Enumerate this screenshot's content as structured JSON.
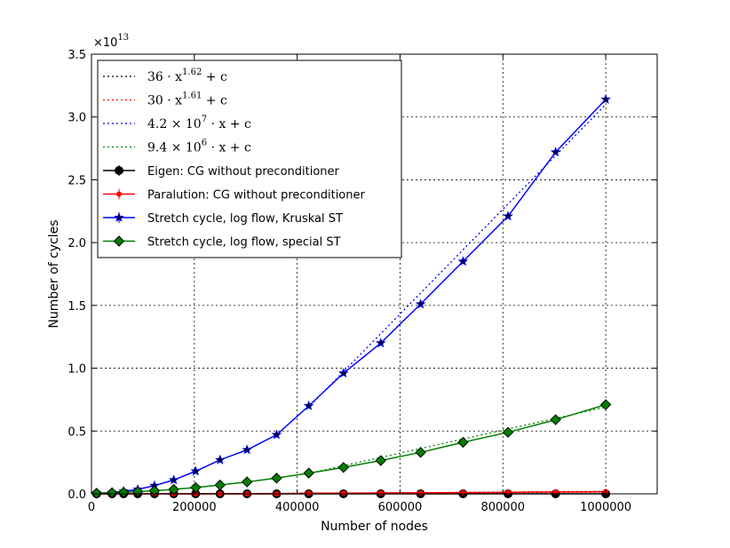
{
  "chart_data": {
    "type": "line",
    "xlabel": "Number of nodes",
    "ylabel": "Number of cycles",
    "xlim": [
      0,
      1100000
    ],
    "ylim": [
      0,
      3.5
    ],
    "y_scale_label": "×10",
    "y_scale_exponent": "13",
    "x_ticks": [
      0,
      200000,
      400000,
      600000,
      800000,
      1000000
    ],
    "x_tick_labels": [
      "0",
      "200000",
      "400000",
      "600000",
      "800000",
      "1000000"
    ],
    "y_ticks": [
      0.0,
      0.5,
      1.0,
      1.5,
      2.0,
      2.5,
      3.0,
      3.5
    ],
    "y_tick_labels": [
      "0.0",
      "0.5",
      "1.0",
      "1.5",
      "2.0",
      "2.5",
      "3.0",
      "3.5"
    ],
    "grid": true,
    "legend_position": "top-left",
    "fits": [
      {
        "label_pre": "36 · x",
        "label_sup": "1.62",
        "label_post": " + c",
        "color": "#000000",
        "type": "power",
        "a": 36,
        "b": 1.62,
        "c": 0
      },
      {
        "label_pre": "30 · x",
        "label_sup": "1.61",
        "label_post": " + c",
        "color": "#ff0000",
        "type": "power",
        "a": 30,
        "b": 1.61,
        "c": 0
      },
      {
        "label_pre": "4.2 × 10",
        "label_sup": "7",
        "label_post": " · x + c",
        "color": "#0000ff",
        "type": "linear_segment",
        "x": [
          420000,
          1000000
        ],
        "y": [
          0.68,
          3.1
        ]
      },
      {
        "label_pre": "9.4 × 10",
        "label_sup": "6",
        "label_post": " · x + c",
        "color": "#008000",
        "type": "linear_segment",
        "x": [
          420000,
          1000000
        ],
        "y": [
          0.16,
          0.69
        ]
      }
    ],
    "series": [
      {
        "name": "Eigen: CG without preconditioner",
        "color": "#000000",
        "marker": "circle",
        "x": [
          10000,
          40000,
          62500,
          90000,
          122500,
          160000,
          202500,
          250000,
          302500,
          360000,
          422500,
          490000,
          562500,
          640000,
          722500,
          810000,
          902500,
          1000000
        ],
        "y": [
          0.0,
          0.0,
          0.0,
          0.0,
          0.0,
          0.0,
          0.0,
          0.0,
          0.0,
          0.0,
          0.0,
          0.0,
          0.0,
          0.0,
          0.0,
          0.0,
          0.0,
          0.0
        ]
      },
      {
        "name": "Paralution: CG without preconditioner",
        "color": "#ff0000",
        "marker": "point",
        "x": [
          10000,
          40000,
          62500,
          90000,
          122500,
          160000,
          202500,
          250000,
          302500,
          360000,
          422500,
          490000,
          562500,
          640000,
          722500,
          810000,
          902500,
          1000000
        ],
        "y": [
          0.0,
          0.0,
          0.0,
          0.0,
          0.0,
          0.0,
          0.0,
          0.0,
          0.0,
          0.0,
          0.005,
          0.005,
          0.007,
          0.008,
          0.01,
          0.012,
          0.015,
          0.018
        ]
      },
      {
        "name": "Stretch cycle, log flow, Kruskal ST",
        "color": "#0000ff",
        "marker": "star",
        "x": [
          10000,
          40000,
          62500,
          90000,
          122500,
          160000,
          202500,
          250000,
          302500,
          360000,
          422500,
          490000,
          562500,
          640000,
          722500,
          810000,
          902500,
          1000000
        ],
        "y": [
          0.005,
          0.01,
          0.02,
          0.035,
          0.065,
          0.11,
          0.18,
          0.27,
          0.35,
          0.47,
          0.7,
          0.96,
          1.2,
          1.51,
          1.85,
          2.21,
          2.72,
          3.14
        ]
      },
      {
        "name": "Stretch cycle, log flow, special ST",
        "color": "#008000",
        "marker": "diamond",
        "x": [
          10000,
          40000,
          62500,
          90000,
          122500,
          160000,
          202500,
          250000,
          302500,
          360000,
          422500,
          490000,
          562500,
          640000,
          722500,
          810000,
          902500,
          1000000
        ],
        "y": [
          0.005,
          0.008,
          0.012,
          0.018,
          0.025,
          0.035,
          0.05,
          0.07,
          0.095,
          0.125,
          0.165,
          0.21,
          0.265,
          0.33,
          0.41,
          0.49,
          0.59,
          0.71
        ]
      }
    ]
  }
}
